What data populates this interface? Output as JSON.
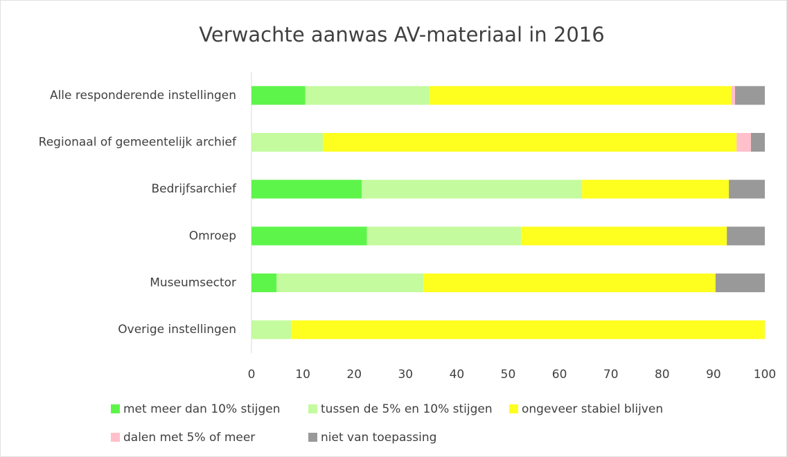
{
  "chart_data": {
    "type": "stacked-bar-horizontal",
    "title": "Verwachte aanwas AV-materiaal in 2016",
    "categories": [
      "Alle responderende instellingen",
      "Regionaal of gemeentelijk archief",
      "Bedrijfsarchief",
      "Omroep",
      "Museumsector",
      "Overige instellingen"
    ],
    "series": [
      {
        "name": "met meer dan 10% stijgen",
        "color": "#5ef54a",
        "values": [
          10.5,
          0,
          21.5,
          22.5,
          4.9,
          0
        ]
      },
      {
        "name": "tussen de 5% en 10% stijgen",
        "color": "#c4fb9e",
        "values": [
          24.2,
          13.9,
          42.9,
          30,
          28.6,
          7.7
        ]
      },
      {
        "name": "ongeveer stabiel blijven",
        "color": "#ffff1f",
        "values": [
          58.8,
          80.6,
          28.6,
          40.1,
          56.9,
          92.3
        ]
      },
      {
        "name": "dalen met 5% of meer",
        "color": "#ffc0cb",
        "values": [
          0.7,
          2.8,
          0,
          0,
          0,
          0
        ]
      },
      {
        "name": "niet van toepassing",
        "color": "#999999",
        "values": [
          5.8,
          2.7,
          7,
          7.4,
          9.6,
          0
        ]
      }
    ],
    "xlim": [
      0,
      100
    ],
    "xticks": [
      0,
      10,
      20,
      30,
      40,
      50,
      60,
      70,
      80,
      90,
      100
    ],
    "grid": false,
    "legend": "bottom"
  }
}
